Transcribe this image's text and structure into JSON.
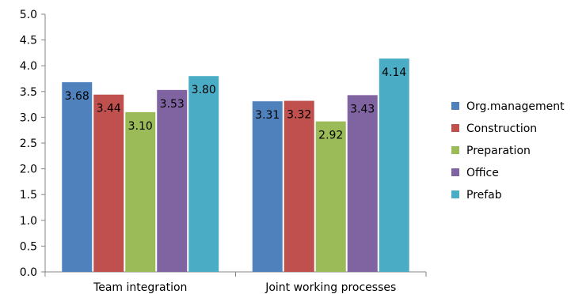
{
  "chart_data": {
    "type": "bar",
    "title": "",
    "xlabel": "",
    "ylabel": "",
    "categories": [
      "Team integration",
      "Joint working processes"
    ],
    "ylim": [
      0,
      5.0
    ],
    "yticks": [
      "0.0",
      "0.5",
      "1.0",
      "1.5",
      "2.0",
      "2.5",
      "3.0",
      "3.5",
      "4.0",
      "4.5",
      "5.0"
    ],
    "grid": false,
    "legend_position": "right",
    "series": [
      {
        "name": "Org.management",
        "color": "#4F81BD",
        "values": [
          3.68,
          3.31
        ],
        "labels": [
          "3.68",
          "3.31"
        ]
      },
      {
        "name": "Construction",
        "color": "#C0504D",
        "values": [
          3.44,
          3.32
        ],
        "labels": [
          "3.44",
          "3.32"
        ]
      },
      {
        "name": "Preparation",
        "color": "#9BBB59",
        "values": [
          3.1,
          2.92
        ],
        "labels": [
          "3.10",
          "2.92"
        ]
      },
      {
        "name": "Office",
        "color": "#8064A2",
        "values": [
          3.53,
          3.43
        ],
        "labels": [
          "3.53",
          "3.43"
        ]
      },
      {
        "name": "Prefab",
        "color": "#4BACC6",
        "values": [
          3.8,
          4.14
        ],
        "labels": [
          "3.80",
          "4.14"
        ]
      }
    ]
  }
}
